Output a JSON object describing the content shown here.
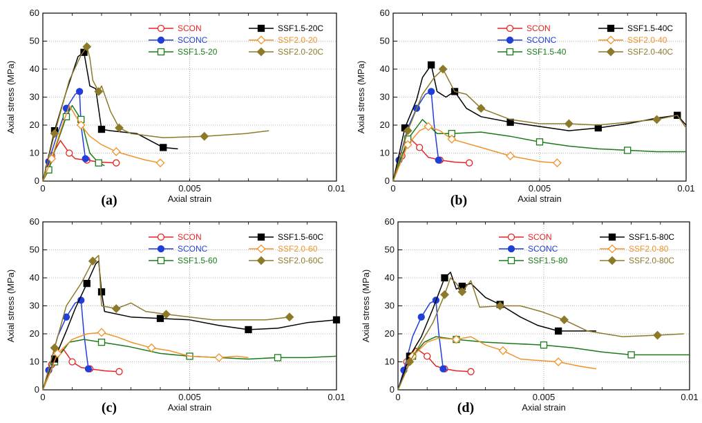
{
  "panels_layout": "2x2",
  "chart_data": [
    {
      "type": "line",
      "panel_label": "(a)",
      "xlabel": "Axial strain",
      "ylabel": "Axial stress (MPa)",
      "xlim": [
        0,
        0.01
      ],
      "ylim": [
        0,
        60
      ],
      "xticks": [
        "0",
        "0.005",
        "0.01"
      ],
      "yticks": [
        "0",
        "10",
        "20",
        "30",
        "40",
        "50",
        "60"
      ],
      "grid": "dotted",
      "legend": "top-right",
      "series": [
        {
          "name": "SCON",
          "color": "#e8221f",
          "marker": "circle-open",
          "x": [
            0,
            0.0003,
            0.0006,
            0.0009,
            0.0011,
            0.0015,
            0.0019,
            0.0025
          ],
          "y": [
            0,
            9,
            14.5,
            10,
            8,
            7.5,
            6.8,
            6.5
          ]
        },
        {
          "name": "SCONC",
          "color": "#1f3fd6",
          "marker": "circle-filled",
          "x": [
            0,
            0.0002,
            0.0005,
            0.0008,
            0.0011,
            0.00125,
            0.0013,
            0.00145,
            0.0016
          ],
          "y": [
            0,
            7,
            17,
            26,
            31,
            32,
            20,
            8,
            7.5
          ]
        },
        {
          "name": "SSF1.5-20",
          "color": "#1a7a1a",
          "marker": "square-open",
          "x": [
            0,
            0.0002,
            0.0005,
            0.0008,
            0.001,
            0.0013,
            0.0016,
            0.0019,
            0.0021
          ],
          "y": [
            0,
            4,
            14,
            23,
            27,
            22,
            10,
            6.5,
            5.5
          ]
        },
        {
          "name": "SSF1.5-20C",
          "color": "#000000",
          "marker": "square-filled",
          "x": [
            0,
            0.0004,
            0.0008,
            0.0012,
            0.0014,
            0.0016,
            0.0018,
            0.002,
            0.0023,
            0.0032,
            0.0041,
            0.0046
          ],
          "y": [
            0,
            18,
            32,
            44.5,
            46,
            34,
            33,
            18.5,
            18,
            17,
            12,
            11.5
          ]
        },
        {
          "name": "SSF2.0-20",
          "color": "#f0922a",
          "marker": "diamond-open",
          "x": [
            0,
            0.0003,
            0.0006,
            0.0009,
            0.0013,
            0.0016,
            0.002,
            0.0025,
            0.003,
            0.0035,
            0.004
          ],
          "y": [
            0,
            8,
            18,
            27,
            20,
            16,
            13,
            10.5,
            9,
            7.5,
            6.5
          ]
        },
        {
          "name": "SSF2.0-20C",
          "color": "#8c7a2a",
          "marker": "diamond-filled",
          "x": [
            0,
            0.0004,
            0.0009,
            0.0013,
            0.0015,
            0.0016,
            0.0017,
            0.0019,
            0.002,
            0.0023,
            0.0026,
            0.003,
            0.0041,
            0.0055,
            0.0069,
            0.0077
          ],
          "y": [
            0,
            17,
            36,
            45,
            48,
            44,
            36,
            32,
            34,
            25,
            19,
            17,
            15.5,
            16,
            17,
            18
          ]
        }
      ]
    },
    {
      "type": "line",
      "panel_label": "(b)",
      "xlabel": "Axial strain",
      "ylabel": "Axial stress (MPa)",
      "xlim": [
        0,
        0.01
      ],
      "ylim": [
        0,
        60
      ],
      "xticks": [
        "0",
        "0.005",
        "0.01"
      ],
      "yticks": [
        "0",
        "10",
        "20",
        "30",
        "40",
        "50",
        "60"
      ],
      "grid": "dotted",
      "legend": "top-right",
      "series": [
        {
          "name": "SCON",
          "color": "#e8221f",
          "marker": "circle-open",
          "x": [
            0,
            0.0003,
            0.0006,
            0.0009,
            0.0012,
            0.0016,
            0.0021,
            0.0026
          ],
          "y": [
            0,
            9,
            15,
            12,
            8.5,
            7.5,
            6.8,
            6.5
          ]
        },
        {
          "name": "SCONC",
          "color": "#1f3fd6",
          "marker": "circle-filled",
          "x": [
            0,
            0.0002,
            0.0005,
            0.0008,
            0.0011,
            0.0013,
            0.0014,
            0.00155,
            0.0017
          ],
          "y": [
            0,
            7.5,
            19,
            26,
            31,
            32,
            20,
            7.5,
            7
          ]
        },
        {
          "name": "SSF1.5-40",
          "color": "#1a7a1a",
          "marker": "square-open",
          "x": [
            0,
            0.0005,
            0.001,
            0.0015,
            0.002,
            0.003,
            0.004,
            0.005,
            0.006,
            0.007,
            0.008,
            0.009,
            0.01
          ],
          "y": [
            0,
            15,
            22,
            17,
            17,
            17.5,
            16,
            14,
            12.5,
            11.5,
            11,
            10.5,
            10.5
          ]
        },
        {
          "name": "SSF1.5-40C",
          "color": "#000000",
          "marker": "square-filled",
          "x": [
            0,
            0.0004,
            0.0008,
            0.001,
            0.0013,
            0.0015,
            0.0018,
            0.0021,
            0.0025,
            0.003,
            0.004,
            0.005,
            0.006,
            0.007,
            0.008,
            0.009,
            0.0097,
            0.01
          ],
          "y": [
            0,
            19,
            29,
            37,
            41.5,
            32,
            30,
            32,
            26,
            23,
            21,
            19.5,
            18,
            19,
            20.5,
            22.5,
            23.5,
            20
          ]
        },
        {
          "name": "SSF2.0-40",
          "color": "#f0922a",
          "marker": "diamond-open",
          "x": [
            0,
            0.0005,
            0.0009,
            0.0012,
            0.0016,
            0.002,
            0.003,
            0.004,
            0.005,
            0.0056
          ],
          "y": [
            0,
            13,
            18,
            19.5,
            18,
            15,
            12,
            9,
            7,
            6.5
          ]
        },
        {
          "name": "SSF2.0-40C",
          "color": "#8c7a2a",
          "marker": "diamond-filled",
          "x": [
            0,
            0.0005,
            0.001,
            0.0014,
            0.0017,
            0.0021,
            0.0025,
            0.003,
            0.004,
            0.005,
            0.006,
            0.007,
            0.008,
            0.009,
            0.0097,
            0.01
          ],
          "y": [
            0,
            18,
            31,
            37,
            40,
            32,
            31,
            26,
            22,
            20.5,
            20.5,
            20,
            21,
            22,
            23.5,
            19
          ]
        }
      ]
    },
    {
      "type": "line",
      "panel_label": "(c)",
      "xlabel": "Axial strain",
      "ylabel": "Axial stress (MPa)",
      "xlim": [
        0,
        0.01
      ],
      "ylim": [
        0,
        60
      ],
      "xticks": [
        "0",
        "0.005",
        "0.01"
      ],
      "yticks": [
        "0",
        "10",
        "20",
        "30",
        "40",
        "50",
        "60"
      ],
      "grid": "dotted",
      "legend": "top-right",
      "series": [
        {
          "name": "SCON",
          "color": "#e8221f",
          "marker": "circle-open",
          "x": [
            0,
            0.0003,
            0.0007,
            0.001,
            0.0013,
            0.0016,
            0.0021,
            0.0026
          ],
          "y": [
            0,
            9,
            14.5,
            10,
            8,
            7.5,
            6.8,
            6.5
          ]
        },
        {
          "name": "SCONC",
          "color": "#1f3fd6",
          "marker": "circle-filled",
          "x": [
            0,
            0.0002,
            0.0005,
            0.0008,
            0.0011,
            0.0013,
            0.0014,
            0.00155,
            0.0017
          ],
          "y": [
            0,
            7,
            19,
            26,
            31,
            32,
            20,
            7.5,
            7
          ]
        },
        {
          "name": "SSF1.5-60",
          "color": "#1a7a1a",
          "marker": "square-open",
          "x": [
            0,
            0.0004,
            0.0009,
            0.0014,
            0.002,
            0.0029,
            0.004,
            0.005,
            0.006,
            0.007,
            0.008,
            0.009,
            0.01
          ],
          "y": [
            0,
            10,
            17,
            18,
            17,
            15.5,
            13,
            12,
            11.5,
            11,
            11.5,
            11.5,
            12
          ]
        },
        {
          "name": "SSF1.5-60C",
          "color": "#000000",
          "marker": "square-filled",
          "x": [
            0,
            0.0004,
            0.0008,
            0.0011,
            0.0015,
            0.0018,
            0.0019,
            0.002,
            0.0021,
            0.003,
            0.004,
            0.005,
            0.006,
            0.007,
            0.008,
            0.009,
            0.01
          ],
          "y": [
            0,
            11,
            21,
            29,
            38,
            45,
            46,
            35,
            28,
            26,
            25.5,
            25,
            23,
            21.5,
            22,
            24,
            25
          ]
        },
        {
          "name": "SSF2.0-60",
          "color": "#f0922a",
          "marker": "diamond-open",
          "x": [
            0,
            0.0005,
            0.001,
            0.0015,
            0.002,
            0.0025,
            0.003,
            0.0037,
            0.0043,
            0.005,
            0.006,
            0.0066,
            0.007
          ],
          "y": [
            0,
            13,
            18,
            20,
            20.5,
            19,
            17,
            15,
            14,
            12,
            11.5,
            12,
            11.5
          ]
        },
        {
          "name": "SSF2.0-60C",
          "color": "#8c7a2a",
          "marker": "diamond-filled",
          "x": [
            0,
            0.0004,
            0.0008,
            0.0013,
            0.0017,
            0.0019,
            0.002,
            0.0025,
            0.003,
            0.0035,
            0.0042,
            0.0058,
            0.0076,
            0.0084
          ],
          "y": [
            0,
            15,
            30,
            38,
            46,
            48,
            30,
            29,
            31,
            28,
            27,
            25,
            25,
            26
          ]
        }
      ]
    },
    {
      "type": "line",
      "panel_label": "(d)",
      "xlabel": "Axial strain",
      "ylabel": "Axial stress (MPa)",
      "xlim": [
        0,
        0.01
      ],
      "ylim": [
        0,
        60
      ],
      "xticks": [
        "0",
        "0.005",
        "0.01"
      ],
      "yticks": [
        "0",
        "10",
        "20",
        "30",
        "40",
        "50",
        "60"
      ],
      "grid": "dotted",
      "legend": "top-right",
      "series": [
        {
          "name": "SCON",
          "color": "#e8221f",
          "marker": "circle-open",
          "x": [
            0,
            0.0003,
            0.0006,
            0.001,
            0.0013,
            0.0016,
            0.002,
            0.0025
          ],
          "y": [
            0,
            10,
            15,
            12,
            8.5,
            7.5,
            6.8,
            6.5
          ]
        },
        {
          "name": "SCONC",
          "color": "#1f3fd6",
          "marker": "circle-filled",
          "x": [
            0,
            0.0002,
            0.0005,
            0.0008,
            0.0011,
            0.0013,
            0.0014,
            0.00155,
            0.0017
          ],
          "y": [
            0,
            7,
            19,
            26,
            31,
            32,
            20,
            7.5,
            7
          ]
        },
        {
          "name": "SSF1.5-80",
          "color": "#1a7a1a",
          "marker": "square-open",
          "x": [
            0,
            0.0005,
            0.0009,
            0.0013,
            0.002,
            0.003,
            0.004,
            0.005,
            0.006,
            0.007,
            0.008,
            0.009,
            0.01
          ],
          "y": [
            0,
            12,
            17,
            19,
            18,
            17,
            16.5,
            16,
            15,
            13.5,
            12.5,
            12.5,
            12.5
          ]
        },
        {
          "name": "SSF1.5-80C",
          "color": "#000000",
          "marker": "square-filled",
          "x": [
            0,
            0.0004,
            0.0008,
            0.0012,
            0.0016,
            0.0018,
            0.002,
            0.0022,
            0.0025,
            0.003,
            0.0035,
            0.0042,
            0.0048,
            0.0055,
            0.0062,
            0.0068
          ],
          "y": [
            0,
            12,
            19,
            29,
            40,
            42,
            36,
            37,
            38,
            33,
            30.5,
            26,
            23,
            21,
            21,
            21
          ]
        },
        {
          "name": "SSF2.0-80",
          "color": "#f0922a",
          "marker": "diamond-open",
          "x": [
            0,
            0.0005,
            0.001,
            0.0014,
            0.002,
            0.0025,
            0.003,
            0.0036,
            0.0042,
            0.0048,
            0.0055,
            0.0062,
            0.0068
          ],
          "y": [
            0,
            12,
            17,
            18.5,
            18,
            19,
            16,
            14,
            11,
            10.5,
            10,
            8.5,
            7.5
          ]
        },
        {
          "name": "SSF2.0-80C",
          "color": "#8c7a2a",
          "marker": "diamond-filled",
          "x": [
            0,
            0.0004,
            0.0008,
            0.0012,
            0.0016,
            0.0018,
            0.002,
            0.0022,
            0.0025,
            0.0028,
            0.0035,
            0.0042,
            0.0049,
            0.0057,
            0.0065,
            0.0077,
            0.0089,
            0.0098
          ],
          "y": [
            0,
            10,
            17,
            24,
            34,
            40,
            38,
            35,
            39,
            29.5,
            30,
            30,
            28,
            25,
            21,
            19,
            19.5,
            20
          ]
        }
      ]
    }
  ]
}
